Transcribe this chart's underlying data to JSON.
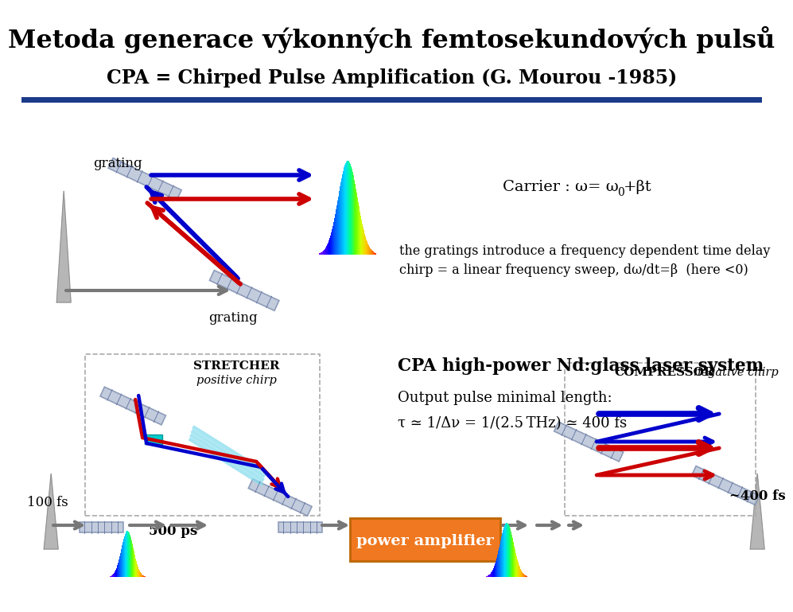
{
  "title": "Metoda generace výkonných femtosekundových pulsů",
  "subtitle": "CPA = Chirped Pulse Amplification (G. Mourou -1985)",
  "divider_color": "#1a3a8a",
  "carrier_label": "Carrier : ω= ω",
  "carrier_sub": "0",
  "carrier_suffix": "+βt",
  "grating_text1": "grating",
  "grating_text2": "grating",
  "intro_text1": "the gratings introduce a frequency dependent time delay",
  "intro_text2": "chirp = a linear frequency sweep, dω/dt=β  (here <0)",
  "stretcher_text": "STRETCHER",
  "positive_chirp": "positive chirp",
  "cpa_title": "CPA high-power Nd:glass laser system",
  "output_text1": "Output pulse minimal length:",
  "output_text2": "τ ≃ 1/Δν = 1/(2.5 THz) ≃ 400 fs",
  "label_100fs": "100 fs",
  "label_500ps": "500 ps",
  "label_400fs": "~400 fs",
  "compressor_text": "COMPRESSOR",
  "negative_chirp": "negative chirp",
  "power_amp_text": "power amplifier",
  "power_amp_color": "#f07820",
  "bg_color": "#ffffff",
  "text_color": "#000000",
  "blue_color": "#0000cc",
  "red_color": "#cc0000",
  "grating_color": "#b8c4d8"
}
